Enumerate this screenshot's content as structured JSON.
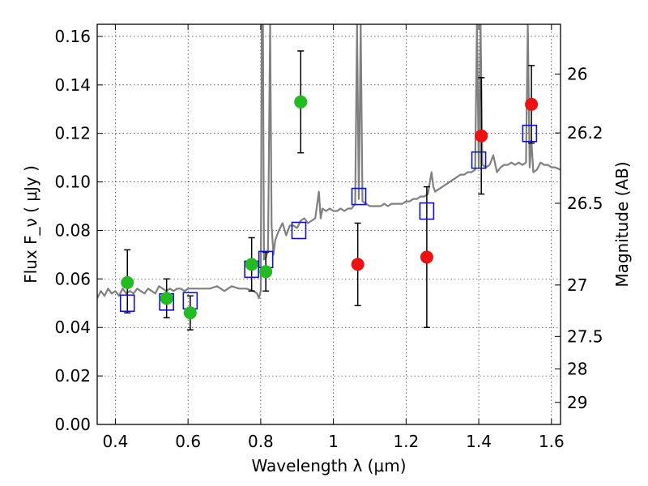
{
  "chart_data": {
    "type": "scatter",
    "xlabel": "Wavelength  λ (μm)",
    "ylabel": "Flux  F_ν  ( μJy )",
    "ylabel_right": "Magnitude (AB)",
    "xlim": [
      0.35,
      1.625
    ],
    "ylim": [
      0.0,
      0.165
    ],
    "grid": true,
    "x_ticks": [
      0.4,
      0.6,
      0.8,
      1.0,
      1.2,
      1.4,
      1.6
    ],
    "x_tick_labels": [
      "0.4",
      "0.6",
      "0.8",
      "1",
      "1.2",
      "1.4",
      "1.6"
    ],
    "y_ticks": [
      0.0,
      0.02,
      0.04,
      0.06,
      0.08,
      0.1,
      0.12,
      0.14,
      0.16
    ],
    "y_tick_labels": [
      "0.00",
      "0.02",
      "0.04",
      "0.06",
      "0.08",
      "0.10",
      "0.12",
      "0.14",
      "0.16"
    ],
    "right_ticks": [
      {
        "label": "26",
        "flux": 0.1445
      },
      {
        "label": "26.2",
        "flux": 0.1202
      },
      {
        "label": "26.5",
        "flux": 0.0912
      },
      {
        "label": "27",
        "flux": 0.0575
      },
      {
        "label": "27.5",
        "flux": 0.0363
      },
      {
        "label": "28",
        "flux": 0.0229
      },
      {
        "label": "29",
        "flux": 0.0091
      }
    ],
    "series": [
      {
        "name": "green points",
        "color": "#22bb22",
        "points": [
          {
            "x": 0.433,
            "y": 0.0585,
            "lo": 0.046,
            "hi": 0.072
          },
          {
            "x": 0.541,
            "y": 0.052,
            "lo": 0.044,
            "hi": 0.06
          },
          {
            "x": 0.606,
            "y": 0.046,
            "lo": 0.039,
            "hi": 0.053
          },
          {
            "x": 0.775,
            "y": 0.066,
            "lo": 0.055,
            "hi": 0.077
          },
          {
            "x": 0.814,
            "y": 0.063,
            "lo": 0.055,
            "hi": 0.071
          },
          {
            "x": 0.91,
            "y": 0.133,
            "lo": 0.112,
            "hi": 0.154
          }
        ]
      },
      {
        "name": "red points",
        "color": "#ee1111",
        "points": [
          {
            "x": 1.067,
            "y": 0.066,
            "lo": 0.049,
            "hi": 0.083
          },
          {
            "x": 1.257,
            "y": 0.069,
            "lo": 0.04,
            "hi": 0.098
          },
          {
            "x": 1.407,
            "y": 0.119,
            "lo": 0.095,
            "hi": 0.143
          },
          {
            "x": 1.545,
            "y": 0.132,
            "lo": 0.116,
            "hi": 0.148
          }
        ]
      },
      {
        "name": "model photometry (squares)",
        "color": "#1111cc",
        "points": [
          {
            "x": 0.433,
            "y": 0.05
          },
          {
            "x": 0.541,
            "y": 0.0505
          },
          {
            "x": 0.606,
            "y": 0.051
          },
          {
            "x": 0.775,
            "y": 0.064
          },
          {
            "x": 0.814,
            "y": 0.068
          },
          {
            "x": 0.905,
            "y": 0.08
          },
          {
            "x": 1.07,
            "y": 0.094
          },
          {
            "x": 1.257,
            "y": 0.088
          },
          {
            "x": 1.4,
            "y": 0.109
          },
          {
            "x": 1.54,
            "y": 0.12
          }
        ]
      }
    ],
    "spectrum": {
      "name": "model spectrum",
      "color": "#808080",
      "points": [
        [
          0.35,
          0.052
        ],
        [
          0.36,
          0.055
        ],
        [
          0.37,
          0.053
        ],
        [
          0.38,
          0.056
        ],
        [
          0.39,
          0.054
        ],
        [
          0.4,
          0.055
        ],
        [
          0.41,
          0.053
        ],
        [
          0.42,
          0.056
        ],
        [
          0.43,
          0.054
        ],
        [
          0.44,
          0.055
        ],
        [
          0.45,
          0.054
        ],
        [
          0.46,
          0.056
        ],
        [
          0.47,
          0.055
        ],
        [
          0.48,
          0.054
        ],
        [
          0.49,
          0.056
        ],
        [
          0.5,
          0.055
        ],
        [
          0.51,
          0.054
        ],
        [
          0.52,
          0.057
        ],
        [
          0.53,
          0.056
        ],
        [
          0.54,
          0.055
        ],
        [
          0.55,
          0.056
        ],
        [
          0.56,
          0.055
        ],
        [
          0.57,
          0.056
        ],
        [
          0.58,
          0.056
        ],
        [
          0.59,
          0.055
        ],
        [
          0.6,
          0.056
        ],
        [
          0.62,
          0.056
        ],
        [
          0.64,
          0.056
        ],
        [
          0.66,
          0.056
        ],
        [
          0.68,
          0.057
        ],
        [
          0.7,
          0.055
        ],
        [
          0.72,
          0.057
        ],
        [
          0.74,
          0.056
        ],
        [
          0.76,
          0.056
        ],
        [
          0.78,
          0.055
        ],
        [
          0.79,
          0.054
        ],
        [
          0.795,
          0.052
        ],
        [
          0.8,
          0.055
        ],
        [
          0.803,
          0.165
        ],
        [
          0.806,
          0.165
        ],
        [
          0.809,
          0.068
        ],
        [
          0.815,
          0.069
        ],
        [
          0.82,
          0.072
        ],
        [
          0.826,
          0.165
        ],
        [
          0.83,
          0.082
        ],
        [
          0.835,
          0.07
        ],
        [
          0.84,
          0.076
        ],
        [
          0.85,
          0.08
        ],
        [
          0.86,
          0.083
        ],
        [
          0.87,
          0.078
        ],
        [
          0.88,
          0.082
        ],
        [
          0.89,
          0.082
        ],
        [
          0.9,
          0.081
        ],
        [
          0.91,
          0.084
        ],
        [
          0.92,
          0.085
        ],
        [
          0.93,
          0.083
        ],
        [
          0.94,
          0.084
        ],
        [
          0.95,
          0.085
        ],
        [
          0.96,
          0.096
        ],
        [
          0.965,
          0.085
        ],
        [
          0.97,
          0.089
        ],
        [
          0.98,
          0.088
        ],
        [
          0.99,
          0.089
        ],
        [
          1.0,
          0.088
        ],
        [
          1.01,
          0.088
        ],
        [
          1.02,
          0.089
        ],
        [
          1.03,
          0.088
        ],
        [
          1.04,
          0.089
        ],
        [
          1.05,
          0.089
        ],
        [
          1.06,
          0.091
        ],
        [
          1.065,
          0.165
        ],
        [
          1.07,
          0.093
        ],
        [
          1.075,
          0.165
        ],
        [
          1.08,
          0.092
        ],
        [
          1.09,
          0.091
        ],
        [
          1.1,
          0.09
        ],
        [
          1.11,
          0.09
        ],
        [
          1.12,
          0.09
        ],
        [
          1.13,
          0.09
        ],
        [
          1.14,
          0.091
        ],
        [
          1.15,
          0.09
        ],
        [
          1.16,
          0.091
        ],
        [
          1.17,
          0.091
        ],
        [
          1.18,
          0.091
        ],
        [
          1.19,
          0.091
        ],
        [
          1.2,
          0.092
        ],
        [
          1.21,
          0.092
        ],
        [
          1.22,
          0.093
        ],
        [
          1.23,
          0.093
        ],
        [
          1.24,
          0.094
        ],
        [
          1.25,
          0.094
        ],
        [
          1.26,
          0.095
        ],
        [
          1.27,
          0.104
        ],
        [
          1.275,
          0.098
        ],
        [
          1.28,
          0.096
        ],
        [
          1.29,
          0.097
        ],
        [
          1.3,
          0.098
        ],
        [
          1.31,
          0.099
        ],
        [
          1.32,
          0.1
        ],
        [
          1.33,
          0.101
        ],
        [
          1.34,
          0.102
        ],
        [
          1.35,
          0.103
        ],
        [
          1.36,
          0.103
        ],
        [
          1.37,
          0.104
        ],
        [
          1.38,
          0.104
        ],
        [
          1.39,
          0.105
        ],
        [
          1.395,
          0.165
        ],
        [
          1.4,
          0.106
        ],
        [
          1.405,
          0.165
        ],
        [
          1.41,
          0.107
        ],
        [
          1.42,
          0.106
        ],
        [
          1.43,
          0.107
        ],
        [
          1.44,
          0.111
        ],
        [
          1.45,
          0.104
        ],
        [
          1.46,
          0.106
        ],
        [
          1.47,
          0.107
        ],
        [
          1.48,
          0.107
        ],
        [
          1.49,
          0.108
        ],
        [
          1.5,
          0.107
        ],
        [
          1.51,
          0.108
        ],
        [
          1.52,
          0.107
        ],
        [
          1.53,
          0.108
        ],
        [
          1.535,
          0.165
        ],
        [
          1.54,
          0.106
        ],
        [
          1.545,
          0.117
        ],
        [
          1.55,
          0.104
        ],
        [
          1.56,
          0.105
        ],
        [
          1.57,
          0.108
        ],
        [
          1.58,
          0.107
        ],
        [
          1.59,
          0.107
        ],
        [
          1.6,
          0.106
        ],
        [
          1.61,
          0.106
        ],
        [
          1.625,
          0.105
        ]
      ]
    }
  }
}
